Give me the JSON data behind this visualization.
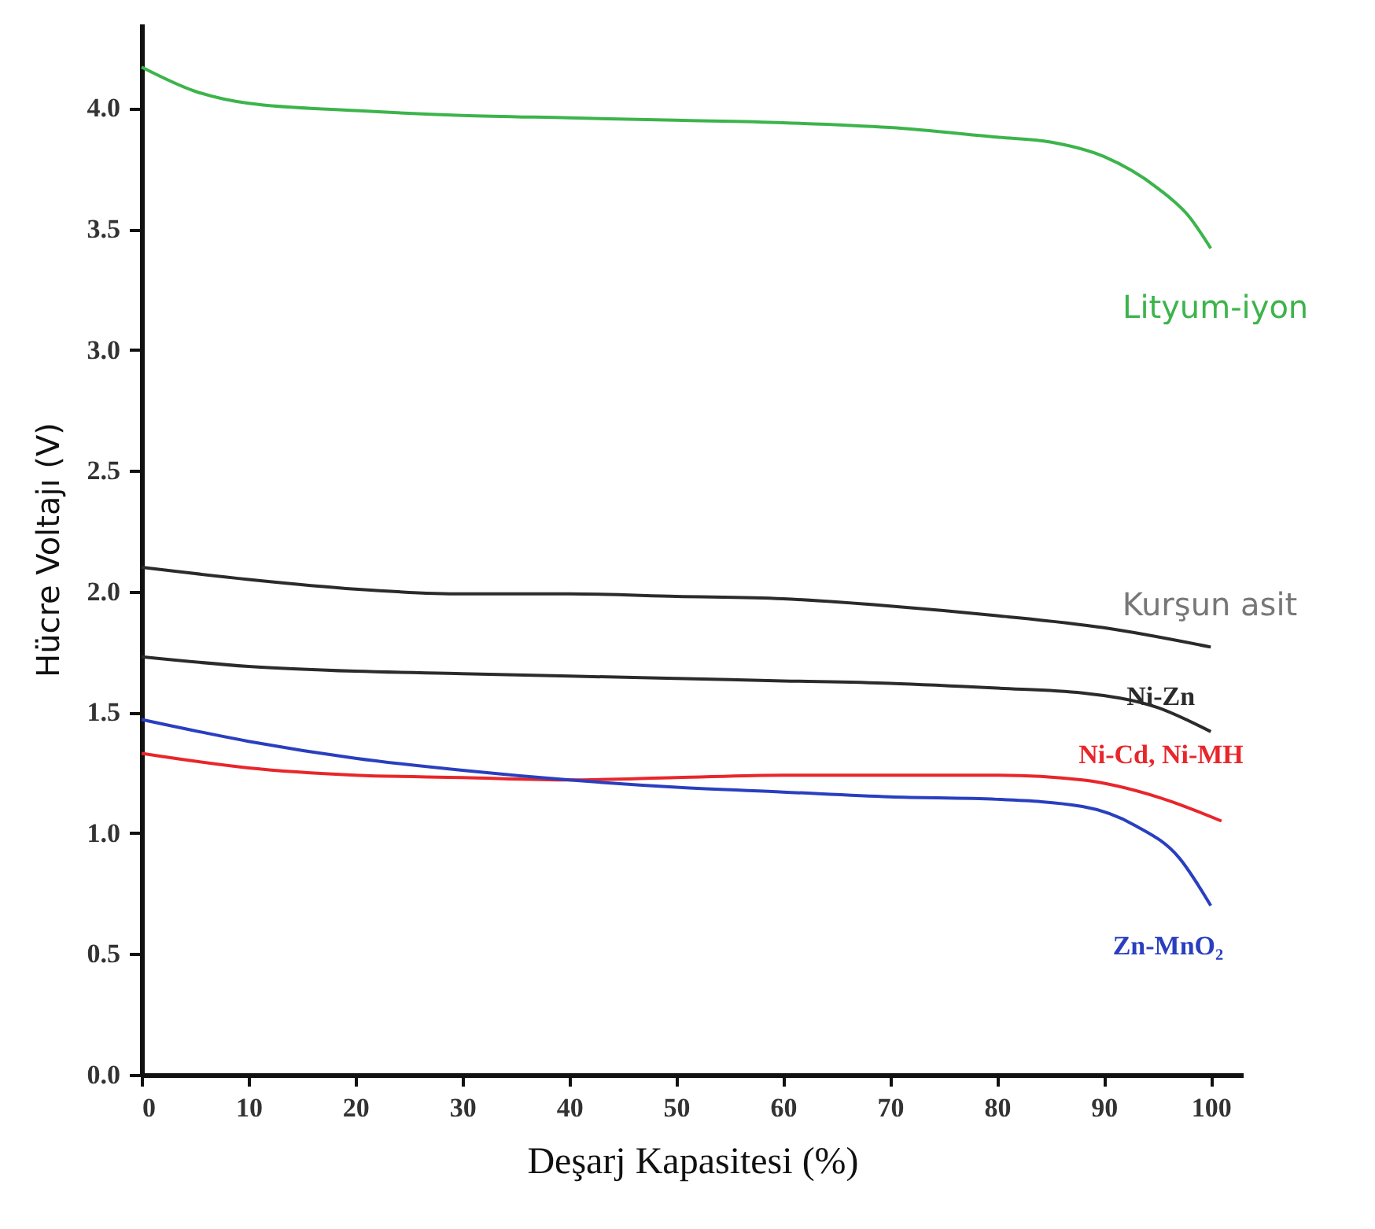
{
  "chart_data": {
    "type": "line",
    "xlabel": "Deşarj Kapasitesi (%)",
    "ylabel": "Hücre Voltajı (V)",
    "xlim": [
      0,
      103
    ],
    "ylim": [
      0,
      4.35
    ],
    "xticks": [
      0,
      10,
      20,
      30,
      40,
      50,
      60,
      70,
      80,
      90,
      100
    ],
    "yticks": [
      {
        "value": 0,
        "label": "0.0"
      },
      {
        "value": 0.5,
        "label": "0.5"
      },
      {
        "value": 1,
        "label": "1.0"
      },
      {
        "value": 1.5,
        "label": "1.5"
      },
      {
        "value": 2,
        "label": "2.0"
      },
      {
        "value": 2.5,
        "label": "2.5"
      },
      {
        "value": 3,
        "label": "3.0"
      },
      {
        "value": 3.5,
        "label": "3.5"
      },
      {
        "value": 4,
        "label": "4.0"
      }
    ],
    "grid": false,
    "legend": false,
    "marker": "none",
    "line_style": "solid",
    "series": [
      {
        "name": "Lityum-iyon",
        "color": "#3cb44b",
        "x": [
          0,
          5,
          10,
          20,
          30,
          40,
          50,
          60,
          70,
          80,
          85,
          90,
          95,
          98,
          100
        ],
        "values": [
          4.17,
          4.07,
          4.02,
          3.99,
          3.97,
          3.96,
          3.95,
          3.94,
          3.92,
          3.88,
          3.86,
          3.8,
          3.67,
          3.55,
          3.42
        ]
      },
      {
        "name": "Kurşun asit",
        "color": "#2b2b2b",
        "x": [
          0,
          10,
          20,
          30,
          40,
          50,
          60,
          70,
          80,
          90,
          100
        ],
        "values": [
          2.1,
          2.05,
          2.01,
          1.99,
          1.99,
          1.98,
          1.97,
          1.94,
          1.9,
          1.85,
          1.77
        ]
      },
      {
        "name": "Ni-Zn",
        "color": "#2b2b2b",
        "x": [
          0,
          10,
          20,
          30,
          40,
          50,
          60,
          70,
          80,
          88,
          95,
          100
        ],
        "values": [
          1.73,
          1.69,
          1.67,
          1.66,
          1.65,
          1.64,
          1.63,
          1.62,
          1.6,
          1.58,
          1.52,
          1.42
        ]
      },
      {
        "name": "Ni-Cd, Ni-MH",
        "color": "#e8262b",
        "x": [
          0,
          10,
          20,
          30,
          40,
          50,
          60,
          70,
          80,
          88,
          95,
          101
        ],
        "values": [
          1.33,
          1.27,
          1.24,
          1.23,
          1.22,
          1.23,
          1.24,
          1.24,
          1.24,
          1.22,
          1.15,
          1.05
        ]
      },
      {
        "name": "Zn-MnO₂",
        "color": "#2a3fbf",
        "x": [
          0,
          10,
          20,
          30,
          40,
          50,
          60,
          70,
          80,
          88,
          93,
          97,
          100
        ],
        "values": [
          1.47,
          1.38,
          1.31,
          1.26,
          1.22,
          1.19,
          1.17,
          1.15,
          1.14,
          1.11,
          1.03,
          0.9,
          0.7
        ]
      }
    ]
  }
}
